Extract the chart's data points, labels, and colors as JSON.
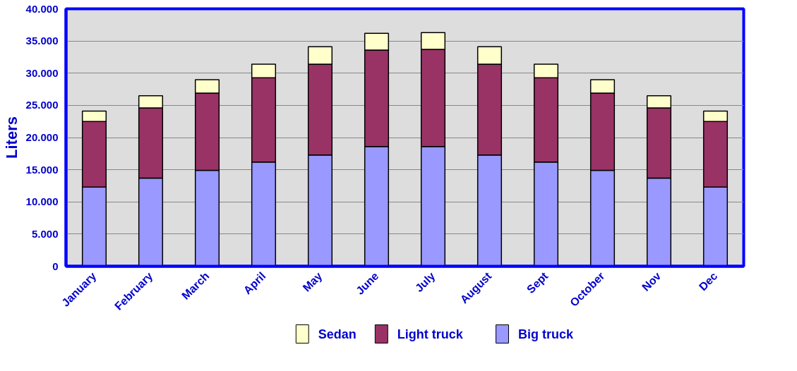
{
  "chart_data": {
    "type": "bar",
    "stacked": true,
    "ylabel": "Liters",
    "categories": [
      "January",
      "February",
      "March",
      "April",
      "May",
      "June",
      "July",
      "August",
      "Sept",
      "October",
      "Nov",
      "Dec"
    ],
    "series": [
      {
        "name": "Big truck",
        "color": "#9999ff",
        "values": [
          12300,
          13700,
          14900,
          16200,
          17300,
          18600,
          18600,
          17300,
          16200,
          14900,
          13700,
          12300
        ]
      },
      {
        "name": "Light truck",
        "color": "#993366",
        "values": [
          10200,
          10900,
          12000,
          13100,
          14100,
          15000,
          15100,
          14100,
          13100,
          12000,
          10900,
          10200
        ]
      },
      {
        "name": "Sedan",
        "color": "#ffffcc",
        "values": [
          1600,
          1900,
          2100,
          2100,
          2700,
          2600,
          2600,
          2700,
          2100,
          2100,
          1900,
          1600
        ]
      }
    ],
    "ylim": [
      0,
      40000
    ],
    "yticks": [
      0,
      {
        "value": 5000,
        "label": "5.000"
      },
      {
        "value": 10000,
        "label": "10.000"
      },
      {
        "value": 15000,
        "label": "15.000"
      },
      {
        "value": 20000,
        "label": "20.000"
      },
      {
        "value": 25000,
        "label": "25.000"
      },
      {
        "value": 30000,
        "label": "30.000"
      },
      {
        "value": 35000,
        "label": "35.000"
      },
      {
        "value": 40000,
        "label": "40.000"
      }
    ],
    "grid": "y",
    "legend": "bottom"
  }
}
